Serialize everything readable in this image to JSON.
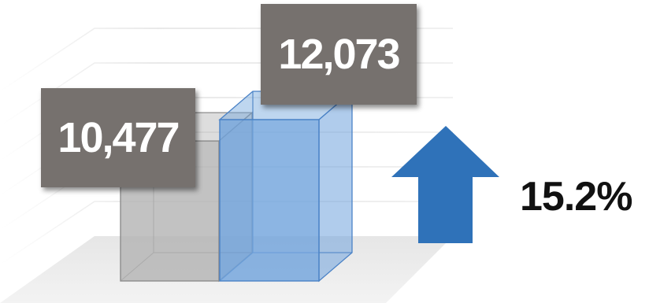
{
  "chart_data": {
    "type": "bar",
    "categories": [
      "",
      ""
    ],
    "values": [
      10477,
      12073
    ],
    "data_labels": [
      "10,477",
      "12,073"
    ],
    "change_label": "15.2%",
    "ylim": [
      0,
      15000
    ],
    "grid": true,
    "legend": "none",
    "style": "3d"
  },
  "colors": {
    "bar_previous": "#b3b3b3",
    "bar_current": "#6fa3dc",
    "label_background": "#76716e",
    "arrow": "#2f72b9"
  },
  "icons": {
    "growth": "up-arrow-icon"
  }
}
